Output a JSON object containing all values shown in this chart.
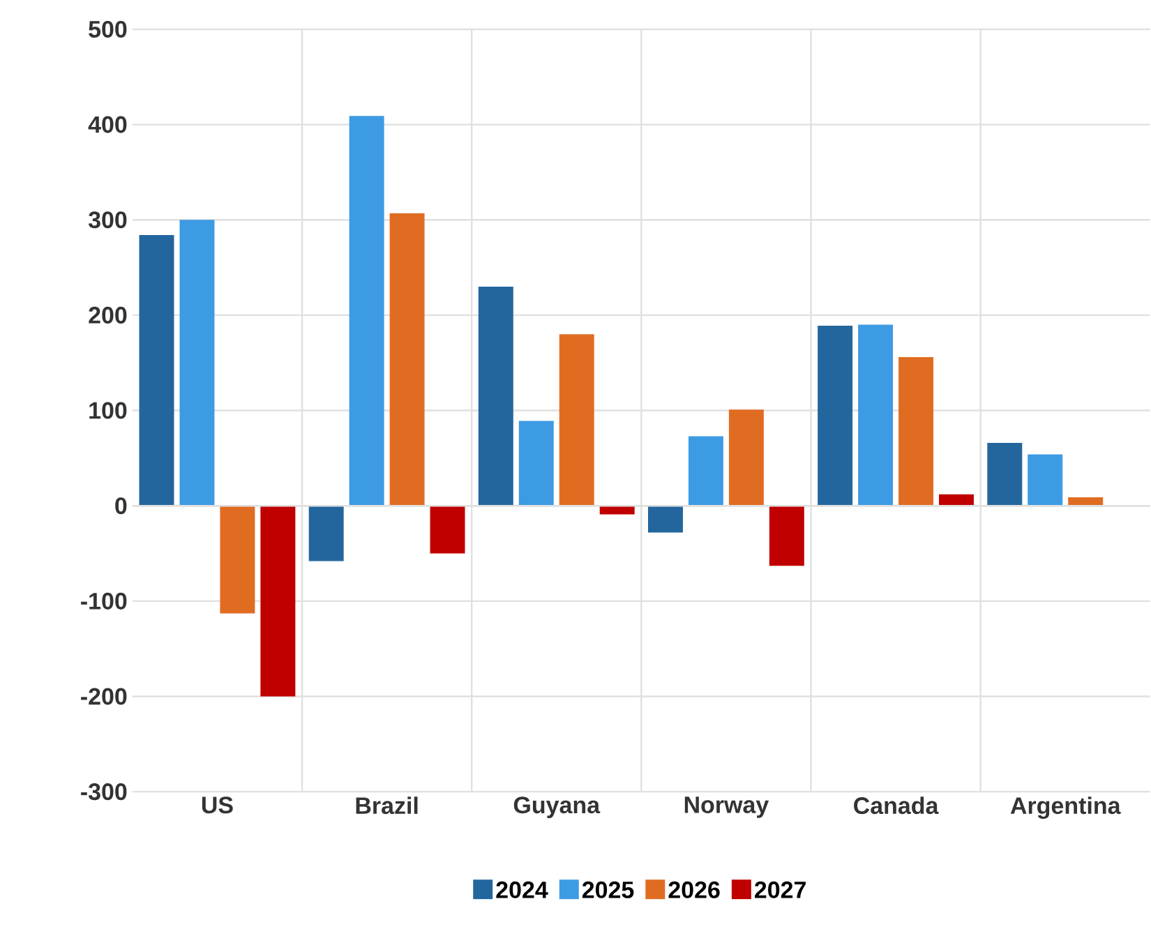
{
  "chart_data": {
    "type": "bar",
    "categories": [
      "US",
      "Brazil",
      "Guyana",
      "Norway",
      "Canada",
      "Argentina"
    ],
    "series": [
      {
        "name": "2024",
        "color": "#23669e",
        "values": [
          284,
          -58,
          230,
          -28,
          189,
          66
        ]
      },
      {
        "name": "2025",
        "color": "#3d9be3",
        "values": [
          300,
          409,
          89,
          73,
          190,
          54
        ]
      },
      {
        "name": "2026",
        "color": "#e06c22",
        "values": [
          -113,
          307,
          180,
          101,
          156,
          9
        ]
      },
      {
        "name": "2027",
        "color": "#c00000",
        "values": [
          -200,
          -50,
          -9,
          -63,
          12,
          null
        ]
      }
    ],
    "ylim": [
      -300,
      500
    ],
    "yticks": [
      -300,
      -200,
      -100,
      0,
      100,
      200,
      300,
      400,
      500
    ],
    "grid": true,
    "legend": "bottom"
  }
}
